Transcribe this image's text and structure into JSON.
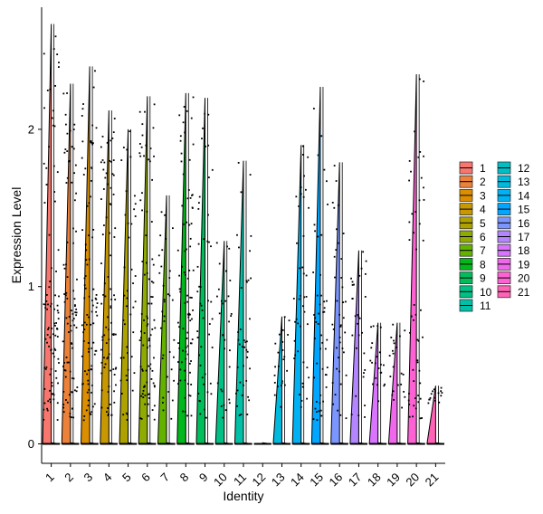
{
  "chart_data": {
    "type": "violin",
    "xlabel": "Identity",
    "ylabel": "Expression Level",
    "categories": [
      "1",
      "2",
      "3",
      "4",
      "5",
      "6",
      "7",
      "8",
      "9",
      "10",
      "11",
      "12",
      "13",
      "14",
      "15",
      "16",
      "17",
      "18",
      "19",
      "20",
      "21"
    ],
    "ylim": [
      -0.12,
      2.8
    ],
    "yticks": [
      0,
      1,
      2
    ],
    "max_values": [
      2.67,
      2.29,
      2.4,
      2.12,
      2.0,
      2.21,
      1.58,
      2.23,
      2.2,
      1.29,
      1.8,
      0.0,
      0.81,
      1.9,
      2.27,
      1.79,
      1.23,
      0.77,
      0.77,
      2.35,
      0.37
    ],
    "legend": {
      "position": "right",
      "entries": [
        {
          "label": "1",
          "color": "#F8766D"
        },
        {
          "label": "2",
          "color": "#EC8239"
        },
        {
          "label": "3",
          "color": "#DB8E00"
        },
        {
          "label": "4",
          "color": "#C79800"
        },
        {
          "label": "5",
          "color": "#AEA200"
        },
        {
          "label": "6",
          "color": "#8FAA00"
        },
        {
          "label": "7",
          "color": "#64B200"
        },
        {
          "label": "8",
          "color": "#00B81B"
        },
        {
          "label": "9",
          "color": "#00BD5C"
        },
        {
          "label": "10",
          "color": "#00C085"
        },
        {
          "label": "11",
          "color": "#00C1A7"
        },
        {
          "label": "12",
          "color": "#00BFC4"
        },
        {
          "label": "13",
          "color": "#00BADE"
        },
        {
          "label": "14",
          "color": "#00B2F3"
        },
        {
          "label": "15",
          "color": "#00A6FF"
        },
        {
          "label": "16",
          "color": "#7C96FF"
        },
        {
          "label": "17",
          "color": "#B385FF"
        },
        {
          "label": "18",
          "color": "#D874FD"
        },
        {
          "label": "19",
          "color": "#EF67EB"
        },
        {
          "label": "20",
          "color": "#FD61D3"
        },
        {
          "label": "21",
          "color": "#FF63B6"
        }
      ]
    },
    "grid": false
  }
}
